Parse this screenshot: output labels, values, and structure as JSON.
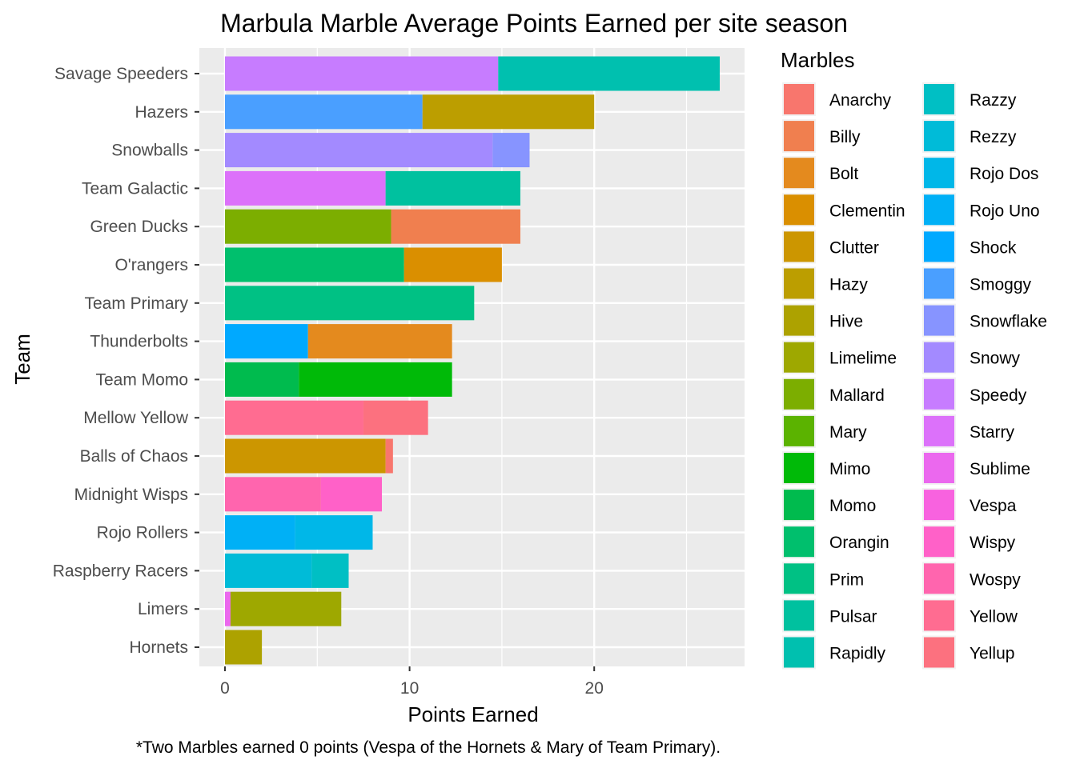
{
  "chart_data": {
    "type": "bar",
    "orientation": "horizontal",
    "stacked": true,
    "title": "Marbula Marble Average Points Earned per site season",
    "xlabel": "Points Earned",
    "ylabel": "Team",
    "caption": "*Two Marbles earned 0 points (Vespa of the Hornets & Mary of Team Primary).",
    "xlim": [
      0,
      28
    ],
    "xticks": [
      0,
      10,
      20
    ],
    "grid": true,
    "legend_title": "Marbles",
    "legend_position": "right",
    "categories": [
      "Savage Speeders",
      "Hazers",
      "Snowballs",
      "Team Galactic",
      "Green Ducks",
      "O'rangers",
      "Team Primary",
      "Thunderbolts",
      "Team Momo",
      "Mellow Yellow",
      "Balls of Chaos",
      "Midnight Wisps",
      "Rojo Rollers",
      "Raspberry Racers",
      "Limers",
      "Hornets"
    ],
    "marbles": [
      {
        "name": "Anarchy",
        "color": "#F8766D"
      },
      {
        "name": "Billy",
        "color": "#F07F4F"
      },
      {
        "name": "Bolt",
        "color": "#E48A1E"
      },
      {
        "name": "Clementin",
        "color": "#DA8F00"
      },
      {
        "name": "Clutter",
        "color": "#CC9600"
      },
      {
        "name": "Hazy",
        "color": "#BC9E00"
      },
      {
        "name": "Hive",
        "color": "#ADA200"
      },
      {
        "name": "Limelime",
        "color": "#9EA800"
      },
      {
        "name": "Mallard",
        "color": "#7CAE00"
      },
      {
        "name": "Mary",
        "color": "#5BB300"
      },
      {
        "name": "Mimo",
        "color": "#00BA08"
      },
      {
        "name": "Momo",
        "color": "#00BB4E"
      },
      {
        "name": "Orangin",
        "color": "#00BF6D"
      },
      {
        "name": "Prim",
        "color": "#00C184"
      },
      {
        "name": "Pulsar",
        "color": "#00C19F"
      },
      {
        "name": "Rapidly",
        "color": "#00C0AF"
      },
      {
        "name": "Razzy",
        "color": "#00BFC4"
      },
      {
        "name": "Rezzy",
        "color": "#00BBD8"
      },
      {
        "name": "Rojo Dos",
        "color": "#00B7E8"
      },
      {
        "name": "Rojo Uno",
        "color": "#00B0F6"
      },
      {
        "name": "Shock",
        "color": "#00A9FF"
      },
      {
        "name": "Smoggy",
        "color": "#4A9FFF"
      },
      {
        "name": "Snowflake",
        "color": "#8794FF"
      },
      {
        "name": "Snowy",
        "color": "#A38AFF"
      },
      {
        "name": "Speedy",
        "color": "#C77CFF"
      },
      {
        "name": "Starry",
        "color": "#DC71FA"
      },
      {
        "name": "Sublime",
        "color": "#EB68EE"
      },
      {
        "name": "Vespa",
        "color": "#F862DF"
      },
      {
        "name": "Wispy",
        "color": "#FF61C8"
      },
      {
        "name": "Wospy",
        "color": "#FF65AE"
      },
      {
        "name": "Yellow",
        "color": "#FF6C91"
      },
      {
        "name": "Yellup",
        "color": "#FC717F"
      }
    ],
    "series": [
      {
        "team": "Savage Speeders",
        "marble": "Speedy",
        "value": 14.8
      },
      {
        "team": "Savage Speeders",
        "marble": "Rapidly",
        "value": 12.0
      },
      {
        "team": "Hazers",
        "marble": "Smoggy",
        "value": 10.7
      },
      {
        "team": "Hazers",
        "marble": "Hazy",
        "value": 9.3
      },
      {
        "team": "Snowballs",
        "marble": "Snowy",
        "value": 14.5
      },
      {
        "team": "Snowballs",
        "marble": "Snowflake",
        "value": 2.0
      },
      {
        "team": "Team Galactic",
        "marble": "Starry",
        "value": 8.7
      },
      {
        "team": "Team Galactic",
        "marble": "Pulsar",
        "value": 7.3
      },
      {
        "team": "Green Ducks",
        "marble": "Mallard",
        "value": 9.0
      },
      {
        "team": "Green Ducks",
        "marble": "Billy",
        "value": 7.0
      },
      {
        "team": "O'rangers",
        "marble": "Orangin",
        "value": 9.7
      },
      {
        "team": "O'rangers",
        "marble": "Clementin",
        "value": 5.3
      },
      {
        "team": "Team Primary",
        "marble": "Prim",
        "value": 13.5
      },
      {
        "team": "Team Primary",
        "marble": "Mary",
        "value": 0
      },
      {
        "team": "Thunderbolts",
        "marble": "Shock",
        "value": 4.5
      },
      {
        "team": "Thunderbolts",
        "marble": "Bolt",
        "value": 7.8
      },
      {
        "team": "Team Momo",
        "marble": "Momo",
        "value": 4.0
      },
      {
        "team": "Team Momo",
        "marble": "Mimo",
        "value": 8.3
      },
      {
        "team": "Mellow Yellow",
        "marble": "Yellow",
        "value": 7.5
      },
      {
        "team": "Mellow Yellow",
        "marble": "Yellup",
        "value": 3.5
      },
      {
        "team": "Balls of Chaos",
        "marble": "Clutter",
        "value": 8.7
      },
      {
        "team": "Balls of Chaos",
        "marble": "Anarchy",
        "value": 0.4
      },
      {
        "team": "Midnight Wisps",
        "marble": "Wospy",
        "value": 5.2
      },
      {
        "team": "Midnight Wisps",
        "marble": "Wispy",
        "value": 3.3
      },
      {
        "team": "Rojo Rollers",
        "marble": "Rojo Uno",
        "value": 3.8
      },
      {
        "team": "Rojo Rollers",
        "marble": "Rojo Dos",
        "value": 4.2
      },
      {
        "team": "Raspberry Racers",
        "marble": "Rezzy",
        "value": 4.7
      },
      {
        "team": "Raspberry Racers",
        "marble": "Razzy",
        "value": 2.0
      },
      {
        "team": "Limers",
        "marble": "Sublime",
        "value": 0.3
      },
      {
        "team": "Limers",
        "marble": "Limelime",
        "value": 6.0
      },
      {
        "team": "Hornets",
        "marble": "Vespa",
        "value": 0
      },
      {
        "team": "Hornets",
        "marble": "Hive",
        "value": 2.0
      }
    ]
  }
}
